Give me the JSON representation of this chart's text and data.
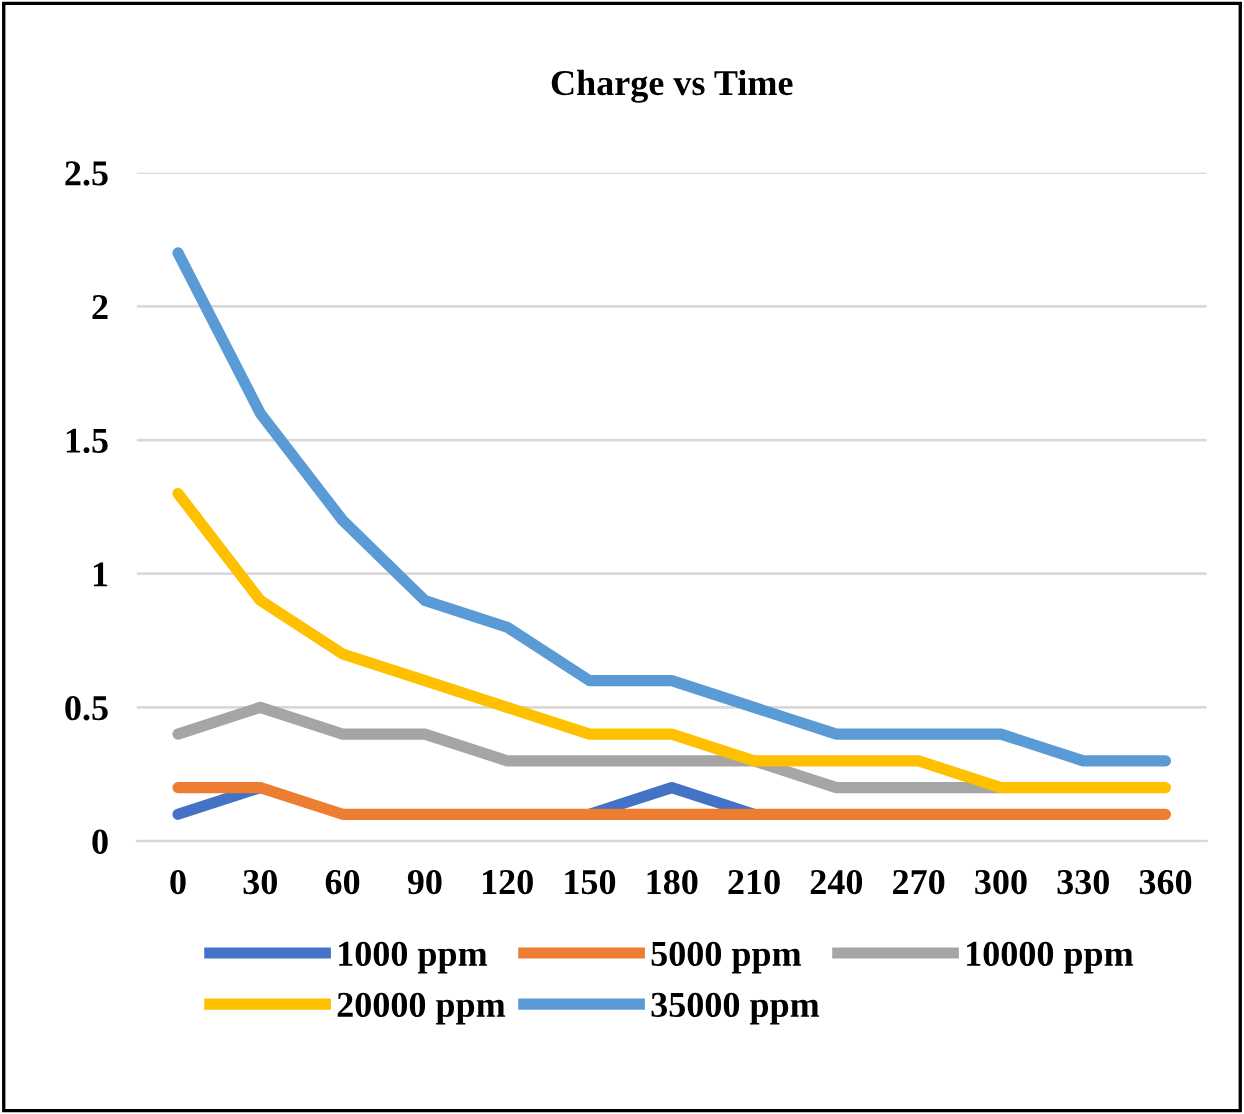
{
  "chart_data": {
    "type": "line",
    "title": "Charge vs Time",
    "categories": [
      "0",
      "30",
      "60",
      "90",
      "120",
      "150",
      "180",
      "210",
      "240",
      "270",
      "300",
      "330",
      "360"
    ],
    "series": [
      {
        "name": "1000 ppm",
        "color": "#4472c4",
        "values": [
          0.1,
          0.2,
          null,
          null,
          null,
          0.1,
          0.2,
          0.1,
          null,
          null,
          null,
          null,
          null
        ]
      },
      {
        "name": "5000 ppm",
        "color": "#ed7d31",
        "values": [
          0.2,
          0.2,
          0.1,
          0.1,
          0.1,
          0.1,
          0.1,
          0.1,
          0.1,
          0.1,
          0.1,
          0.1,
          0.1
        ]
      },
      {
        "name": "10000 ppm",
        "color": "#a5a5a5",
        "values": [
          0.4,
          0.5,
          0.4,
          0.4,
          0.3,
          0.3,
          0.3,
          0.3,
          0.2,
          0.2,
          0.2,
          null,
          null
        ]
      },
      {
        "name": "20000 ppm",
        "color": "#ffc000",
        "values": [
          1.3,
          0.9,
          0.7,
          0.6,
          0.5,
          0.4,
          0.4,
          0.3,
          0.3,
          0.3,
          0.2,
          0.2,
          0.2
        ]
      },
      {
        "name": "35000 ppm",
        "color": "#5b9bd5",
        "values": [
          2.2,
          1.6,
          1.2,
          0.9,
          0.8,
          0.6,
          0.6,
          0.5,
          0.4,
          0.4,
          0.4,
          0.3,
          0.3
        ]
      }
    ],
    "ylim": [
      0,
      2.5
    ],
    "yticks": [
      0,
      0.5,
      1,
      1.5,
      2,
      2.5
    ],
    "grid": "y",
    "legend": "bottom",
    "marker": "none",
    "line_style": "solid"
  }
}
